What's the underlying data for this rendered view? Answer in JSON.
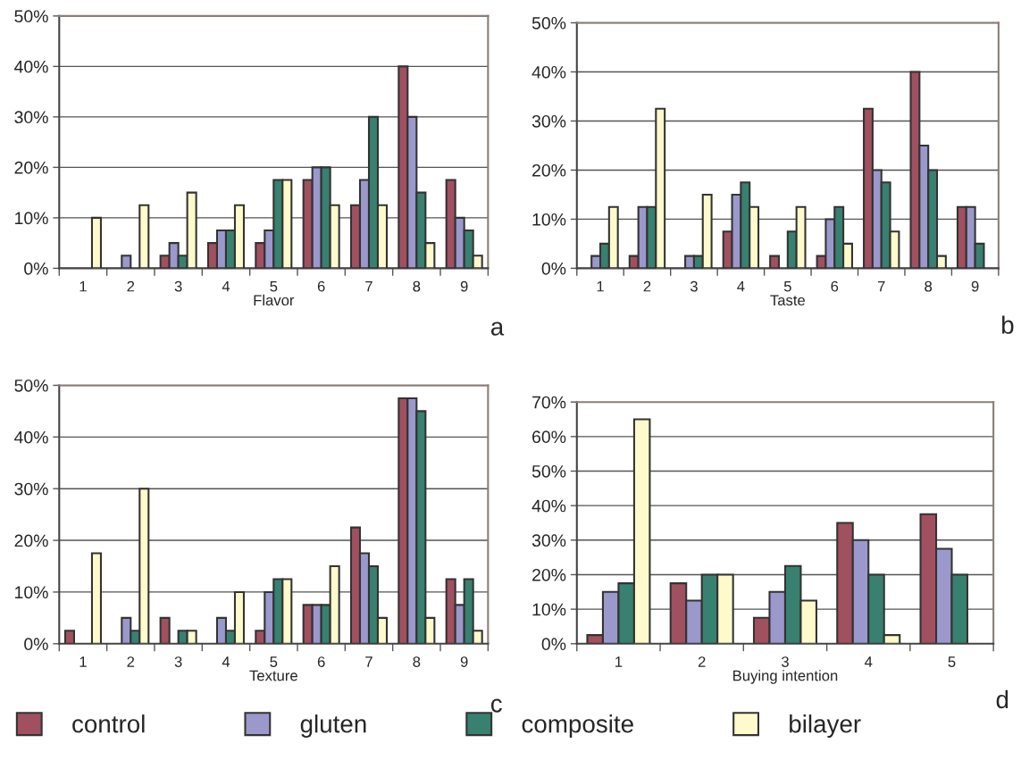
{
  "chart_data": [
    {
      "type": "bar",
      "xlabel": "Flavor",
      "categories": [
        "1",
        "2",
        "3",
        "4",
        "5",
        "6",
        "7",
        "8",
        "9"
      ],
      "ylim": [
        0,
        50
      ],
      "yticks": [
        {
          "value": 0,
          "label": "0%"
        },
        {
          "value": 10,
          "label": "10%"
        },
        {
          "value": 20,
          "label": "20%"
        },
        {
          "value": 30,
          "label": "30%"
        },
        {
          "value": 40,
          "label": "40%"
        },
        {
          "value": 50,
          "label": "50%"
        }
      ],
      "grid": "y",
      "legend": "bottom",
      "annotations": [
        "a"
      ],
      "series": [
        {
          "name": "control",
          "color": "#a0505f",
          "values": [
            null,
            null,
            2.5,
            5,
            5,
            17.5,
            12.5,
            40,
            17.5
          ]
        },
        {
          "name": "gluten",
          "color": "#9b98cc",
          "values": [
            null,
            2.5,
            5,
            7.5,
            7.5,
            20,
            17.5,
            30,
            10
          ]
        },
        {
          "name": "composite",
          "color": "#38806f",
          "values": [
            null,
            null,
            2.5,
            7.5,
            17.5,
            20,
            30,
            15,
            7.5
          ]
        },
        {
          "name": "bilayer",
          "color": "#fffacc",
          "values": [
            10,
            12.5,
            15,
            12.5,
            17.5,
            12.5,
            12.5,
            5,
            2.5
          ]
        }
      ]
    },
    {
      "type": "bar",
      "xlabel": "Taste",
      "categories": [
        "1",
        "2",
        "3",
        "4",
        "5",
        "6",
        "7",
        "8",
        "9"
      ],
      "ylim": [
        0,
        50
      ],
      "yticks": [
        {
          "value": 0,
          "label": "0%"
        },
        {
          "value": 10,
          "label": "10%"
        },
        {
          "value": 20,
          "label": "20%"
        },
        {
          "value": 30,
          "label": "30%"
        },
        {
          "value": 40,
          "label": "40%"
        },
        {
          "value": 50,
          "label": "50%"
        }
      ],
      "grid": "y",
      "annotations": [
        "b"
      ],
      "series": [
        {
          "color": "#a0505f",
          "values": [
            null,
            2.5,
            null,
            7.5,
            2.5,
            2.5,
            32.5,
            40,
            12.5
          ]
        },
        {
          "color": "#9b98cc",
          "values": [
            2.5,
            12.5,
            2.5,
            15,
            null,
            10,
            20,
            25,
            12.5
          ]
        },
        {
          "color": "#38806f",
          "values": [
            5,
            12.5,
            2.5,
            17.5,
            7.5,
            12.5,
            17.5,
            20,
            5
          ]
        },
        {
          "color": "#fffacc",
          "values": [
            12.5,
            32.5,
            15,
            12.5,
            12.5,
            5,
            7.5,
            2.5,
            null
          ]
        }
      ]
    },
    {
      "type": "bar",
      "xlabel": "Texture",
      "categories": [
        "1",
        "2",
        "3",
        "4",
        "5",
        "6",
        "7",
        "8",
        "9"
      ],
      "ylim": [
        0,
        50
      ],
      "yticks": [
        {
          "value": 0,
          "label": "0%"
        },
        {
          "value": 10,
          "label": "10%"
        },
        {
          "value": 20,
          "label": "20%"
        },
        {
          "value": 30,
          "label": "30%"
        },
        {
          "value": 40,
          "label": "40%"
        },
        {
          "value": 50,
          "label": "50%"
        }
      ],
      "grid": "y",
      "annotations": [
        "c"
      ],
      "series": [
        {
          "color": "#a0505f",
          "values": [
            2.5,
            null,
            5,
            null,
            2.5,
            7.5,
            22.5,
            47.5,
            12.5
          ]
        },
        {
          "color": "#9b98cc",
          "values": [
            null,
            5,
            null,
            5,
            10,
            7.5,
            17.5,
            47.5,
            7.5
          ]
        },
        {
          "color": "#38806f",
          "values": [
            null,
            2.5,
            2.5,
            2.5,
            12.5,
            7.5,
            15,
            45,
            12.5
          ]
        },
        {
          "color": "#fffacc",
          "values": [
            17.5,
            30,
            2.5,
            10,
            12.5,
            15,
            5,
            5,
            2.5
          ]
        }
      ]
    },
    {
      "type": "bar",
      "xlabel": "Buying intention",
      "categories": [
        "1",
        "2",
        "3",
        "4",
        "5"
      ],
      "ylim": [
        0,
        70
      ],
      "yticks": [
        {
          "value": 0,
          "label": "0%"
        },
        {
          "value": 10,
          "label": "10%"
        },
        {
          "value": 20,
          "label": "20%"
        },
        {
          "value": 30,
          "label": "30%"
        },
        {
          "value": 40,
          "label": "40%"
        },
        {
          "value": 50,
          "label": "50%"
        },
        {
          "value": 60,
          "label": "60%"
        },
        {
          "value": 70,
          "label": "70%"
        }
      ],
      "grid": "y",
      "annotations": [
        "d"
      ],
      "series": [
        {
          "color": "#a0505f",
          "values": [
            2.5,
            17.5,
            7.5,
            35,
            37.5
          ]
        },
        {
          "color": "#9b98cc",
          "values": [
            15,
            12.5,
            15,
            30,
            27.5
          ]
        },
        {
          "color": "#38806f",
          "values": [
            17.5,
            20,
            22.5,
            20,
            20
          ]
        },
        {
          "color": "#fffacc",
          "values": [
            65,
            20,
            12.5,
            2.5,
            null
          ]
        }
      ]
    }
  ]
}
